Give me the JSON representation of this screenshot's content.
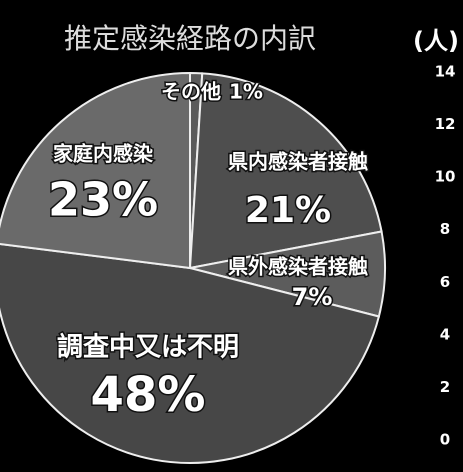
{
  "chart_data": {
    "type": "pie",
    "title": "推定感染経路の内訳",
    "categories": [
      "その他",
      "県内感染者接触",
      "県外感染者接触",
      "調査中又は不明",
      "家庭内感染"
    ],
    "values": [
      1,
      21,
      7,
      48,
      23
    ],
    "value_labels": [
      "1%",
      "21%",
      "7%",
      "48%",
      "23%"
    ],
    "colors": [
      "#5a5a5a",
      "#4e4e4e",
      "#5c5c5c",
      "#474747",
      "#6a6a6a"
    ],
    "y2label": "(人)",
    "y2lim": [
      0,
      14
    ],
    "y2ticks": [
      0,
      2,
      4,
      6,
      8,
      10,
      12,
      14
    ]
  }
}
